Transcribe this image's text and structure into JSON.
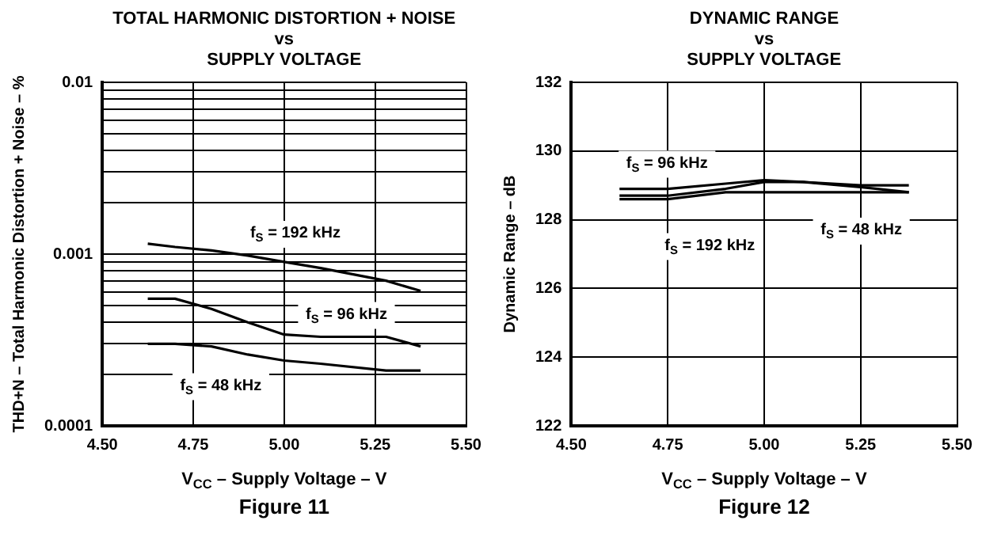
{
  "chart_data": [
    {
      "type": "line",
      "title": "TOTAL HARMONIC DISTORTION + NOISE\nvs\nSUPPLY VOLTAGE",
      "xlabel": "V$_{CC}$ – Supply Voltage – V",
      "ylabel": "THD+N – Total Harmonic Distortion + Noise – %",
      "log": "y",
      "grid": true,
      "legend": false,
      "marker": "none",
      "line_style": "solid",
      "xlim": [
        4.5,
        5.5
      ],
      "xticks": [
        {
          "value": 4.5,
          "label": "4.50"
        },
        {
          "value": 4.75,
          "label": "4.75"
        },
        {
          "value": 5,
          "label": "5.00"
        },
        {
          "value": 5.25,
          "label": "5.25"
        },
        {
          "value": 5.5,
          "label": "5.50"
        }
      ],
      "ylim": [
        0.0001,
        0.01
      ],
      "yticks": [
        0.0001,
        {
          "value": 0.0002,
          "label": null
        },
        {
          "value": 0.0003,
          "label": null
        },
        {
          "value": 0.0004,
          "label": null
        },
        {
          "value": 0.0005,
          "label": null
        },
        {
          "value": 0.0006,
          "label": null
        },
        {
          "value": 0.0007,
          "label": null
        },
        {
          "value": 0.0008,
          "label": null
        },
        {
          "value": 0.0009,
          "label": null
        },
        0.001,
        {
          "value": 0.002,
          "label": null
        },
        {
          "value": 0.003,
          "label": null
        },
        {
          "value": 0.004,
          "label": null
        },
        {
          "value": 0.005,
          "label": null
        },
        {
          "value": 0.006,
          "label": null
        },
        {
          "value": 0.007,
          "label": null
        },
        {
          "value": 0.008,
          "label": null
        },
        {
          "value": 0.009,
          "label": null
        },
        0.01
      ],
      "x": [
        4.625,
        4.7,
        4.8,
        4.9,
        5.0,
        5.1,
        5.28,
        5.375
      ],
      "series": [
        {
          "name": "f$_{S}$ = 192 kHz",
          "color": "#000000",
          "values": [
            0.00115,
            0.0011,
            0.00105,
            0.00098,
            0.0009,
            0.00083,
            0.0007,
            0.00061
          ]
        },
        {
          "name": "f$_{S}$ = 96 kHz",
          "color": "#000000",
          "values": [
            0.00055,
            0.00055,
            0.00048,
            0.0004,
            0.00034,
            0.00033,
            0.00033,
            0.00029
          ]
        },
        {
          "name": "f$_{S}$ = 48 kHz",
          "color": "#000000",
          "values": [
            0.0003,
            0.0003,
            0.00029,
            0.00026,
            0.00024,
            0.00023,
            0.00021,
            0.00021
          ]
        }
      ],
      "annotations": [
        "Figure 11"
      ]
    },
    {
      "type": "line",
      "title": "DYNAMIC RANGE\nvs\nSUPPLY VOLTAGE",
      "xlabel": "V$_{CC}$ – Supply Voltage – V",
      "ylabel": "Dynamic Range – dB",
      "grid": true,
      "legend": false,
      "marker": "none",
      "line_style": "solid",
      "xlim": [
        4.5,
        5.5
      ],
      "xticks": [
        {
          "value": 4.5,
          "label": "4.50"
        },
        {
          "value": 4.75,
          "label": "4.75"
        },
        {
          "value": 5,
          "label": "5.00"
        },
        {
          "value": 5.25,
          "label": "5.25"
        },
        {
          "value": 5.5,
          "label": "5.50"
        }
      ],
      "ylim": [
        122,
        132
      ],
      "yticks": [
        122,
        124,
        126,
        128,
        130,
        132
      ],
      "x": [
        4.625,
        4.75,
        4.9,
        5.0,
        5.1,
        5.25,
        5.375
      ],
      "series": [
        {
          "name": "f$_{S}$ = 96 kHz",
          "color": "#000000",
          "values": [
            128.9,
            128.9,
            129.05,
            129.15,
            129.1,
            129.0,
            129.0
          ]
        },
        {
          "name": "f$_{S}$ = 192 kHz",
          "color": "#000000",
          "values": [
            128.7,
            128.7,
            128.9,
            129.1,
            129.1,
            128.95,
            128.8
          ]
        },
        {
          "name": "f$_{S}$ = 48 kHz",
          "color": "#000000",
          "values": [
            128.6,
            128.6,
            128.8,
            128.8,
            128.8,
            128.8,
            128.8
          ]
        }
      ],
      "annotations": [
        "Figure 12"
      ]
    }
  ]
}
